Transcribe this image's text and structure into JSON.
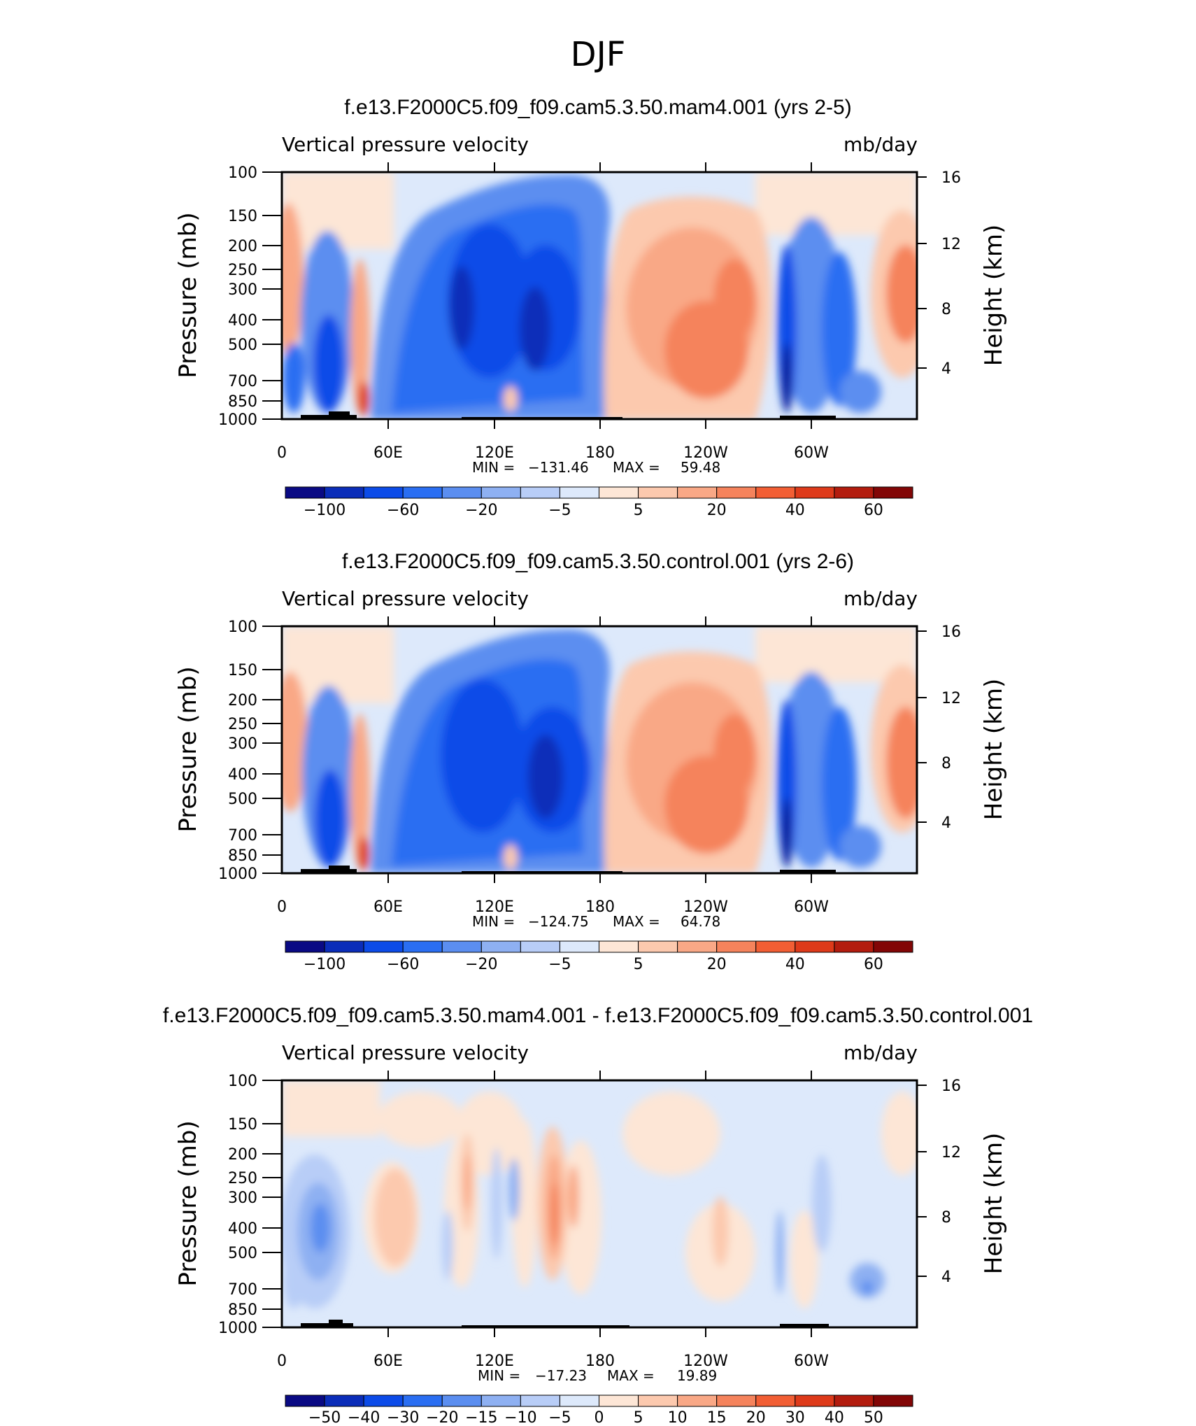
{
  "figure": {
    "title": "DJF"
  },
  "chart_data": [
    {
      "type": "heatmap",
      "title": "f.e13.F2000C5.f09_f09.cam5.3.50.mam4.001 (yrs 2-5)",
      "left_label": "Vertical pressure velocity",
      "right_label": "mb/day",
      "ylabel": "Pressure (mb)",
      "y2label": "Height (km)",
      "xticks": [
        "0",
        "60E",
        "120E",
        "180",
        "120W",
        "60W"
      ],
      "yticks": [
        "100",
        "150",
        "200",
        "250",
        "300",
        "400",
        "500",
        "700",
        "850",
        "1000"
      ],
      "y2ticks": [
        "16",
        "12",
        "8",
        "4"
      ],
      "stats": {
        "min_label": "MIN =",
        "min": "−131.46",
        "max_label": "MAX =",
        "max": "59.48"
      },
      "colorbar": {
        "levels": [
          -120,
          -100,
          -80,
          -60,
          -40,
          -20,
          -10,
          -5,
          0,
          5,
          10,
          20,
          30,
          40,
          50,
          60,
          70
        ],
        "labels": [
          "−100",
          "−60",
          "−20",
          "−5",
          "5",
          "20",
          "40",
          "60"
        ],
        "label_edges": [
          1,
          3,
          5,
          7,
          9,
          11,
          13,
          15
        ],
        "colors": [
          "#0a0a84",
          "#0b2db9",
          "#0c4be8",
          "#2a6ef2",
          "#5b8ef0",
          "#8eb0f2",
          "#b8cdf7",
          "#dde9fb",
          "#fde6d6",
          "#fcc9ae",
          "#f9a886",
          "#f5835c",
          "#f25e34",
          "#de3a1a",
          "#b31c0e",
          "#820606"
        ]
      },
      "field_ranges": {
        "xlim": [
          0,
          360
        ],
        "ylim_mb": [
          1000,
          100
        ]
      }
    },
    {
      "type": "heatmap",
      "title": "f.e13.F2000C5.f09_f09.cam5.3.50.control.001 (yrs 2-6)",
      "left_label": "Vertical pressure velocity",
      "right_label": "mb/day",
      "ylabel": "Pressure (mb)",
      "y2label": "Height (km)",
      "xticks": [
        "0",
        "60E",
        "120E",
        "180",
        "120W",
        "60W"
      ],
      "yticks": [
        "100",
        "150",
        "200",
        "250",
        "300",
        "400",
        "500",
        "700",
        "850",
        "1000"
      ],
      "y2ticks": [
        "16",
        "12",
        "8",
        "4"
      ],
      "stats": {
        "min_label": "MIN =",
        "min": "−124.75",
        "max_label": "MAX =",
        "max": "64.78"
      },
      "colorbar": {
        "levels": [
          -120,
          -100,
          -80,
          -60,
          -40,
          -20,
          -10,
          -5,
          0,
          5,
          10,
          20,
          30,
          40,
          50,
          60,
          70
        ],
        "labels": [
          "−100",
          "−60",
          "−20",
          "−5",
          "5",
          "20",
          "40",
          "60"
        ],
        "label_edges": [
          1,
          3,
          5,
          7,
          9,
          11,
          13,
          15
        ],
        "colors": [
          "#0a0a84",
          "#0b2db9",
          "#0c4be8",
          "#2a6ef2",
          "#5b8ef0",
          "#8eb0f2",
          "#b8cdf7",
          "#dde9fb",
          "#fde6d6",
          "#fcc9ae",
          "#f9a886",
          "#f5835c",
          "#f25e34",
          "#de3a1a",
          "#b31c0e",
          "#820606"
        ]
      },
      "field_ranges": {
        "xlim": [
          0,
          360
        ],
        "ylim_mb": [
          1000,
          100
        ]
      }
    },
    {
      "type": "heatmap",
      "title": "f.e13.F2000C5.f09_f09.cam5.3.50.mam4.001 - f.e13.F2000C5.f09_f09.cam5.3.50.control.001",
      "left_label": "Vertical pressure velocity",
      "right_label": "mb/day",
      "ylabel": "Pressure (mb)",
      "y2label": "Height (km)",
      "xticks": [
        "0",
        "60E",
        "120E",
        "180",
        "120W",
        "60W"
      ],
      "yticks": [
        "100",
        "150",
        "200",
        "250",
        "300",
        "400",
        "500",
        "700",
        "850",
        "1000"
      ],
      "y2ticks": [
        "16",
        "12",
        "8",
        "4"
      ],
      "stats": {
        "min_label": "MIN =",
        "min": "−17.23",
        "max_label": "MAX =",
        "max": "19.89"
      },
      "colorbar": {
        "levels": [
          -60,
          -50,
          -40,
          -30,
          -20,
          -15,
          -10,
          -5,
          0,
          5,
          10,
          15,
          20,
          30,
          40,
          50,
          60
        ],
        "labels": [
          "−50",
          "−40",
          "−30",
          "−20",
          "−15",
          "−10",
          "−5",
          "0",
          "5",
          "10",
          "15",
          "20",
          "30",
          "40",
          "50"
        ],
        "label_edges": [
          1,
          2,
          3,
          4,
          5,
          6,
          7,
          8,
          9,
          10,
          11,
          12,
          13,
          14,
          15
        ],
        "colors": [
          "#0a0a84",
          "#0b2db9",
          "#0c4be8",
          "#2a6ef2",
          "#5b8ef0",
          "#8eb0f2",
          "#b8cdf7",
          "#dde9fb",
          "#fde6d6",
          "#fcc9ae",
          "#f9a886",
          "#f5835c",
          "#f25e34",
          "#de3a1a",
          "#b31c0e",
          "#820606"
        ]
      },
      "field_ranges": {
        "xlim": [
          0,
          360
        ],
        "ylim_mb": [
          1000,
          100
        ]
      }
    }
  ]
}
